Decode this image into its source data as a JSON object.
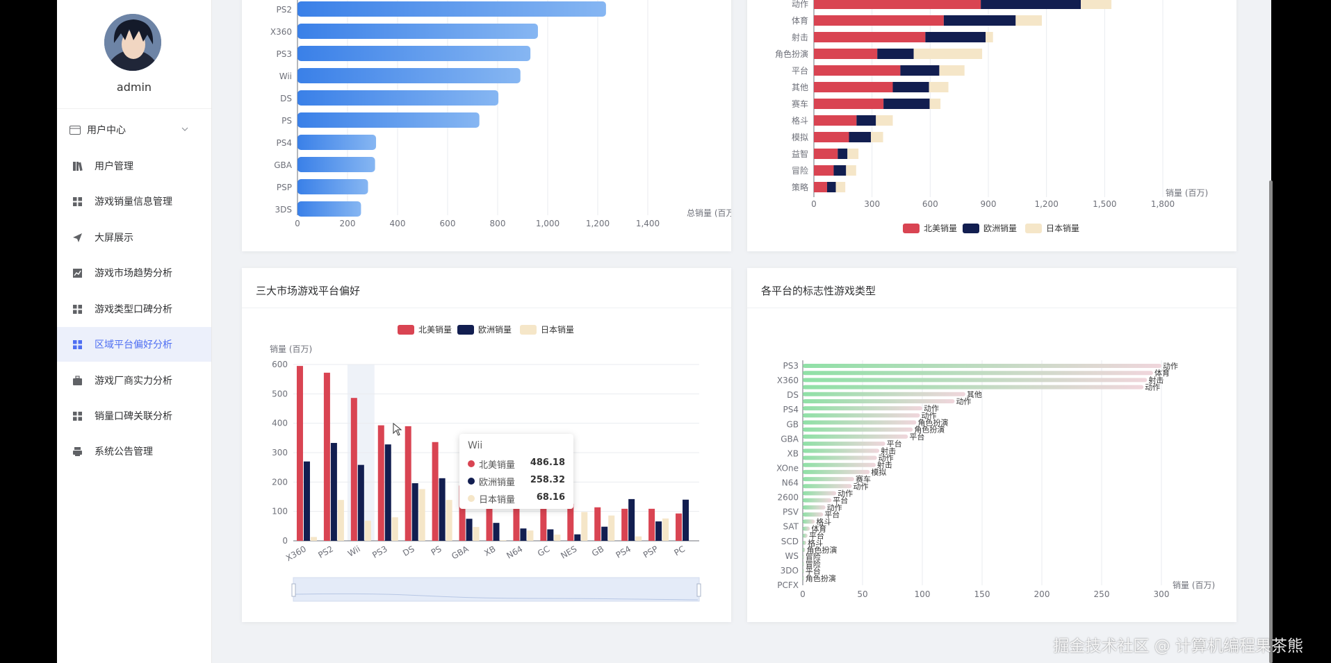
{
  "sidebar": {
    "username": "admin",
    "group": {
      "label": "用户中心",
      "icon": "credit-card-icon"
    },
    "items": [
      {
        "label": "用户管理",
        "icon": "book-icon",
        "active": false
      },
      {
        "label": "游戏销量信息管理",
        "icon": "grid-icon",
        "active": false
      },
      {
        "label": "大屏展示",
        "icon": "send-icon",
        "active": false
      },
      {
        "label": "游戏市场趋势分析",
        "icon": "line-chart-icon",
        "active": false
      },
      {
        "label": "游戏类型口碑分析",
        "icon": "grid-icon",
        "active": false
      },
      {
        "label": "区域平台偏好分析",
        "icon": "grid-icon",
        "active": true
      },
      {
        "label": "游戏厂商实力分析",
        "icon": "briefcase-icon",
        "active": false
      },
      {
        "label": "销量口碑关联分析",
        "icon": "grid-icon",
        "active": false
      },
      {
        "label": "系统公告管理",
        "icon": "printer-icon",
        "active": false
      }
    ]
  },
  "colors": {
    "na": "#d94452",
    "eu": "#121e50",
    "jp": "#f5e6c8",
    "blue": "#3b7fe6",
    "active": "#4e6ef2"
  },
  "panels": {
    "bottom_left_title": "三大市场游戏平台偏好",
    "bottom_right_title": "各平台的标志性游戏类型"
  },
  "tooltip": {
    "title": "Wii",
    "rows": [
      {
        "name": "北美销量",
        "value": "486.18"
      },
      {
        "name": "欧洲销量",
        "value": "258.32"
      },
      {
        "name": "日本销量",
        "value": "68.16"
      }
    ]
  },
  "watermark": "掘金技术社区 @ 计算机编程果茶熊",
  "chart_data": [
    {
      "type": "bar",
      "orientation": "horizontal",
      "categories": [
        "PS2",
        "X360",
        "PS3",
        "Wii",
        "DS",
        "PS",
        "PS4",
        "GBA",
        "PSP",
        "3DS"
      ],
      "values": [
        1233,
        961,
        931,
        891,
        803,
        727,
        314,
        310,
        282,
        254
      ],
      "xlabel": "总销量 (百万)",
      "xlim": [
        0,
        1400
      ],
      "xticks": [
        "0",
        "200",
        "400",
        "600",
        "800",
        "1,000",
        "1,200",
        "1,400"
      ]
    },
    {
      "type": "bar",
      "orientation": "horizontal",
      "stacked": true,
      "categories": [
        "动作",
        "体育",
        "射击",
        "角色扮演",
        "平台",
        "其他",
        "赛车",
        "格斗",
        "模拟",
        "益智",
        "冒险",
        "策略"
      ],
      "series": [
        {
          "name": "北美销量",
          "values": [
            861,
            670,
            575,
            327,
            446,
            407,
            359,
            220,
            181,
            123,
            102,
            68
          ]
        },
        {
          "name": "欧洲销量",
          "values": [
            516,
            371,
            311,
            188,
            201,
            187,
            238,
            100,
            113,
            50,
            64,
            45
          ]
        },
        {
          "name": "日本销量",
          "values": [
            158,
            135,
            38,
            353,
            130,
            100,
            56,
            87,
            63,
            57,
            52,
            49
          ]
        }
      ],
      "xlabel": "销量 (百万)",
      "xlim": [
        0,
        1800
      ],
      "xticks": [
        "0",
        "300",
        "600",
        "900",
        "1,200",
        "1,500",
        "1,800"
      ],
      "legend": "bottom"
    },
    {
      "type": "bar",
      "orientation": "vertical",
      "categories": [
        "X360",
        "PS2",
        "Wii",
        "PS3",
        "DS",
        "PS",
        "GBA",
        "XB",
        "N64",
        "GC",
        "NES",
        "GB",
        "PS4",
        "PSP",
        "PC"
      ],
      "series": [
        {
          "name": "北美销量",
          "values": [
            595,
            572,
            486.18,
            393,
            390,
            336,
            188,
            187,
            139,
            133,
            126,
            114,
            109,
            109,
            93
          ]
        },
        {
          "name": "欧洲销量",
          "values": [
            270,
            333,
            258.32,
            328,
            196,
            213,
            75,
            61,
            42,
            39,
            22,
            48,
            142,
            66,
            140
          ]
        },
        {
          "name": "日本销量",
          "values": [
            13,
            139,
            68.16,
            80,
            176,
            139,
            47,
            2,
            35,
            21,
            98,
            86,
            15,
            76,
            0
          ]
        }
      ],
      "ylabel": "销量 (百万)",
      "ylim": [
        0,
        600
      ],
      "yticks": [
        "0",
        "100",
        "200",
        "300",
        "400",
        "500",
        "600"
      ],
      "legend": "top-center",
      "highlight_category": "Wii"
    },
    {
      "type": "bar",
      "orientation": "horizontal",
      "y_tick_labels": [
        "PS3",
        "X360",
        "DS",
        "PS4",
        "GB",
        "GBA",
        "XB",
        "XOne",
        "N64",
        "2600",
        "PSV",
        "SAT",
        "SCD",
        "WS",
        "3DO",
        "PCFX"
      ],
      "bars": [
        {
          "value": 300,
          "label": "动作"
        },
        {
          "value": 293,
          "label": "体育"
        },
        {
          "value": 288,
          "label": "射击"
        },
        {
          "value": 285,
          "label": "动作"
        },
        {
          "value": 136,
          "label": "其他"
        },
        {
          "value": 127,
          "label": "动作"
        },
        {
          "value": 100,
          "label": "动作"
        },
        {
          "value": 98,
          "label": "动作"
        },
        {
          "value": 95,
          "label": "角色扮演"
        },
        {
          "value": 92,
          "label": "角色扮演"
        },
        {
          "value": 88,
          "label": "平台"
        },
        {
          "value": 69,
          "label": "平台"
        },
        {
          "value": 64,
          "label": "射击"
        },
        {
          "value": 62,
          "label": "动作"
        },
        {
          "value": 61,
          "label": "射击"
        },
        {
          "value": 56,
          "label": "模拟"
        },
        {
          "value": 43,
          "label": "赛车"
        },
        {
          "value": 41,
          "label": "动作"
        },
        {
          "value": 28,
          "label": "动作"
        },
        {
          "value": 24,
          "label": "平台"
        },
        {
          "value": 19,
          "label": "动作"
        },
        {
          "value": 17,
          "label": "平台"
        },
        {
          "value": 10,
          "label": "格斗"
        },
        {
          "value": 6,
          "label": "体育"
        },
        {
          "value": 4,
          "label": "平台"
        },
        {
          "value": 3,
          "label": "格斗"
        },
        {
          "value": 2,
          "label": "角色扮演"
        },
        {
          "value": 1,
          "label": "冒险"
        },
        {
          "value": 1,
          "label": "冒险"
        },
        {
          "value": 1,
          "label": "平台"
        },
        {
          "value": 1,
          "label": "角色扮演"
        }
      ],
      "xlabel": "销量 (百万)",
      "xlim": [
        0,
        300
      ],
      "xticks": [
        "0",
        "50",
        "100",
        "150",
        "200",
        "250",
        "300"
      ]
    }
  ]
}
